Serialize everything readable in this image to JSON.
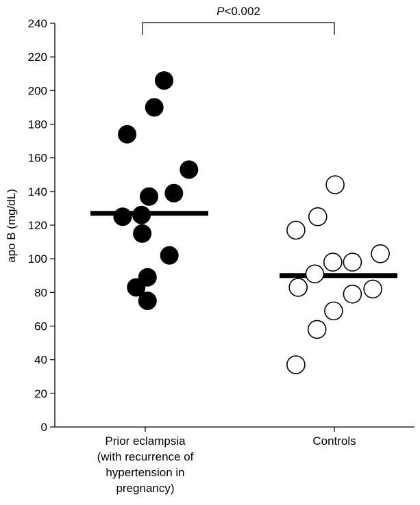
{
  "chart_data": {
    "type": "scatter",
    "ylabel": "apo B (mg/dL)",
    "ylim": [
      0,
      240
    ],
    "yticks": [
      "0",
      "20",
      "40",
      "60",
      "80",
      "100",
      "120",
      "140",
      "160",
      "180",
      "200",
      "220",
      "240"
    ],
    "grid": false,
    "categories": [
      [
        "Prior eclampsia",
        "(with recurrence of",
        "hypertension in",
        "pregnancy)"
      ],
      [
        "Controls"
      ]
    ],
    "series": [
      {
        "category_index": 0,
        "marker": "filled",
        "color": "#000000",
        "points": [
          {
            "jitter": 0.25,
            "y": 206
          },
          {
            "jitter": 0.12,
            "y": 190
          },
          {
            "jitter": -0.24,
            "y": 174
          },
          {
            "jitter": 0.58,
            "y": 153
          },
          {
            "jitter": 0.38,
            "y": 139
          },
          {
            "jitter": 0.05,
            "y": 137
          },
          {
            "jitter": -0.05,
            "y": 126
          },
          {
            "jitter": -0.3,
            "y": 125
          },
          {
            "jitter": -0.04,
            "y": 115
          },
          {
            "jitter": 0.32,
            "y": 102
          },
          {
            "jitter": 0.03,
            "y": 89
          },
          {
            "jitter": -0.12,
            "y": 83
          },
          {
            "jitter": 0.03,
            "y": 75
          }
        ],
        "median": 127
      },
      {
        "category_index": 1,
        "marker": "open",
        "color": "#000000",
        "points": [
          {
            "jitter": 0.01,
            "y": 144
          },
          {
            "jitter": -0.22,
            "y": 125
          },
          {
            "jitter": -0.51,
            "y": 117
          },
          {
            "jitter": 0.61,
            "y": 103
          },
          {
            "jitter": 0.24,
            "y": 98
          },
          {
            "jitter": -0.02,
            "y": 98
          },
          {
            "jitter": -0.26,
            "y": 91
          },
          {
            "jitter": -0.48,
            "y": 83
          },
          {
            "jitter": 0.51,
            "y": 82
          },
          {
            "jitter": 0.24,
            "y": 79
          },
          {
            "jitter": -0.01,
            "y": 69
          },
          {
            "jitter": -0.23,
            "y": 58
          },
          {
            "jitter": -0.51,
            "y": 37
          }
        ],
        "median": 90
      }
    ],
    "annotations": {
      "significance": "P<0.002",
      "significance_italic": "P",
      "significance_rest": "<0.002"
    }
  }
}
